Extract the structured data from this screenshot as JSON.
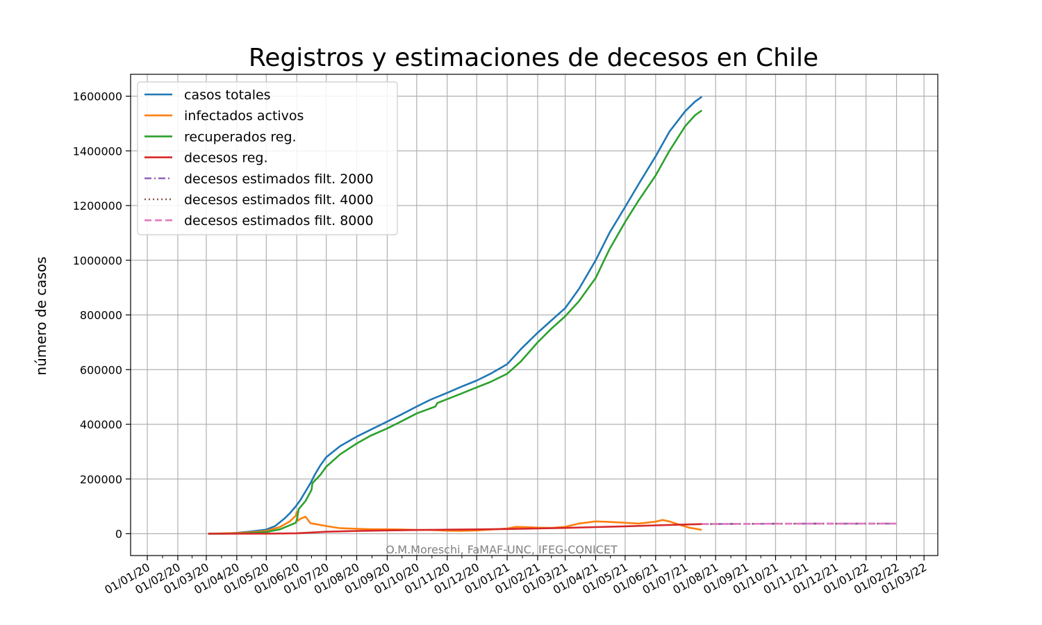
{
  "chart_data": {
    "type": "line",
    "title": "Registros y estimaciones de decesos en Chile",
    "xlabel": "",
    "ylabel": "número de casos",
    "xlim": [
      "2019-12-15",
      "2022-03-15"
    ],
    "ylim": [
      -80000,
      1680000
    ],
    "grid": true,
    "legend_position": "top-left",
    "credit": "O.M.Moreschi, FaMAF-UNC, IFEG-CONICET",
    "x_ticks": [
      {
        "date": "2020-01-01",
        "label": "01/01/20"
      },
      {
        "date": "2020-02-01",
        "label": "01/02/20"
      },
      {
        "date": "2020-03-01",
        "label": "01/03/20"
      },
      {
        "date": "2020-04-01",
        "label": "01/04/20"
      },
      {
        "date": "2020-05-01",
        "label": "01/05/20"
      },
      {
        "date": "2020-06-01",
        "label": "01/06/20"
      },
      {
        "date": "2020-07-01",
        "label": "01/07/20"
      },
      {
        "date": "2020-08-01",
        "label": "01/08/20"
      },
      {
        "date": "2020-09-01",
        "label": "01/09/20"
      },
      {
        "date": "2020-10-01",
        "label": "01/10/20"
      },
      {
        "date": "2020-11-01",
        "label": "01/11/20"
      },
      {
        "date": "2020-12-01",
        "label": "01/12/20"
      },
      {
        "date": "2021-01-01",
        "label": "01/01/21"
      },
      {
        "date": "2021-02-01",
        "label": "01/02/21"
      },
      {
        "date": "2021-03-01",
        "label": "01/03/21"
      },
      {
        "date": "2021-04-01",
        "label": "01/04/21"
      },
      {
        "date": "2021-05-01",
        "label": "01/05/21"
      },
      {
        "date": "2021-06-01",
        "label": "01/06/21"
      },
      {
        "date": "2021-07-01",
        "label": "01/07/21"
      },
      {
        "date": "2021-08-01",
        "label": "01/08/21"
      },
      {
        "date": "2021-09-01",
        "label": "01/09/21"
      },
      {
        "date": "2021-10-01",
        "label": "01/10/21"
      },
      {
        "date": "2021-11-01",
        "label": "01/11/21"
      },
      {
        "date": "2021-12-01",
        "label": "01/12/21"
      },
      {
        "date": "2022-01-01",
        "label": "01/01/22"
      },
      {
        "date": "2022-02-01",
        "label": "01/02/22"
      },
      {
        "date": "2022-03-01",
        "label": "01/03/22"
      }
    ],
    "y_ticks": [
      0,
      200000,
      400000,
      600000,
      800000,
      1000000,
      1200000,
      1400000,
      1600000
    ],
    "series": [
      {
        "name": "casos totales",
        "color": "#1f77b4",
        "style": "solid",
        "points": [
          [
            "2020-03-03",
            0
          ],
          [
            "2020-03-20",
            400
          ],
          [
            "2020-04-01",
            3000
          ],
          [
            "2020-04-15",
            8000
          ],
          [
            "2020-05-01",
            15000
          ],
          [
            "2020-05-10",
            28000
          ],
          [
            "2020-05-20",
            57000
          ],
          [
            "2020-05-25",
            75000
          ],
          [
            "2020-05-31",
            100000
          ],
          [
            "2020-06-05",
            125000
          ],
          [
            "2020-06-10",
            155000
          ],
          [
            "2020-06-15",
            185000
          ],
          [
            "2020-06-20",
            220000
          ],
          [
            "2020-06-25",
            250000
          ],
          [
            "2020-07-01",
            280000
          ],
          [
            "2020-07-15",
            320000
          ],
          [
            "2020-08-01",
            355000
          ],
          [
            "2020-08-15",
            380000
          ],
          [
            "2020-09-01",
            410000
          ],
          [
            "2020-09-15",
            435000
          ],
          [
            "2020-10-01",
            465000
          ],
          [
            "2020-10-15",
            490000
          ],
          [
            "2020-11-01",
            515000
          ],
          [
            "2020-11-15",
            537000
          ],
          [
            "2020-12-01",
            560000
          ],
          [
            "2020-12-15",
            585000
          ],
          [
            "2021-01-01",
            620000
          ],
          [
            "2021-01-15",
            675000
          ],
          [
            "2021-02-01",
            735000
          ],
          [
            "2021-02-15",
            780000
          ],
          [
            "2021-03-01",
            825000
          ],
          [
            "2021-03-15",
            895000
          ],
          [
            "2021-04-01",
            1000000
          ],
          [
            "2021-04-15",
            1100000
          ],
          [
            "2021-05-01",
            1195000
          ],
          [
            "2021-05-15",
            1280000
          ],
          [
            "2021-06-01",
            1380000
          ],
          [
            "2021-06-15",
            1470000
          ],
          [
            "2021-07-01",
            1545000
          ],
          [
            "2021-07-11",
            1580000
          ],
          [
            "2021-07-18",
            1598000
          ]
        ]
      },
      {
        "name": "infectados activos",
        "color": "#ff7f0e",
        "style": "solid",
        "points": [
          [
            "2020-03-03",
            0
          ],
          [
            "2020-04-01",
            2500
          ],
          [
            "2020-04-15",
            5000
          ],
          [
            "2020-05-01",
            10000
          ],
          [
            "2020-05-15",
            25000
          ],
          [
            "2020-05-25",
            45000
          ],
          [
            "2020-05-31",
            66000
          ],
          [
            "2020-06-01",
            80000
          ],
          [
            "2020-06-02",
            47000
          ],
          [
            "2020-06-05",
            55000
          ],
          [
            "2020-06-10",
            62000
          ],
          [
            "2020-06-12",
            52000
          ],
          [
            "2020-06-15",
            38000
          ],
          [
            "2020-06-20",
            35000
          ],
          [
            "2020-07-01",
            28000
          ],
          [
            "2020-07-15",
            20000
          ],
          [
            "2020-08-01",
            18000
          ],
          [
            "2020-08-15",
            16500
          ],
          [
            "2020-09-01",
            16000
          ],
          [
            "2020-09-15",
            15500
          ],
          [
            "2020-10-01",
            14000
          ],
          [
            "2020-10-15",
            13500
          ],
          [
            "2020-11-01",
            11000
          ],
          [
            "2020-11-15",
            10500
          ],
          [
            "2020-12-01",
            12000
          ],
          [
            "2020-12-15",
            15000
          ],
          [
            "2021-01-01",
            19000
          ],
          [
            "2021-01-10",
            25000
          ],
          [
            "2021-01-20",
            24000
          ],
          [
            "2021-02-01",
            22000
          ],
          [
            "2021-02-15",
            21000
          ],
          [
            "2021-03-01",
            25000
          ],
          [
            "2021-03-15",
            37000
          ],
          [
            "2021-04-01",
            45000
          ],
          [
            "2021-04-15",
            43000
          ],
          [
            "2021-05-01",
            40000
          ],
          [
            "2021-05-15",
            37000
          ],
          [
            "2021-06-01",
            44000
          ],
          [
            "2021-06-08",
            50000
          ],
          [
            "2021-06-15",
            45000
          ],
          [
            "2021-06-25",
            33000
          ],
          [
            "2021-07-05",
            22000
          ],
          [
            "2021-07-18",
            14000
          ]
        ]
      },
      {
        "name": "recuperados reg.",
        "color": "#2ca02c",
        "style": "solid",
        "points": [
          [
            "2020-03-03",
            0
          ],
          [
            "2020-04-01",
            500
          ],
          [
            "2020-04-15",
            2500
          ],
          [
            "2020-05-01",
            6000
          ],
          [
            "2020-05-15",
            16000
          ],
          [
            "2020-05-31",
            40000
          ],
          [
            "2020-06-01",
            50000
          ],
          [
            "2020-06-03",
            90000
          ],
          [
            "2020-06-10",
            120000
          ],
          [
            "2020-06-16",
            160000
          ],
          [
            "2020-06-17",
            185000
          ],
          [
            "2020-06-25",
            215000
          ],
          [
            "2020-07-01",
            245000
          ],
          [
            "2020-07-15",
            290000
          ],
          [
            "2020-08-01",
            330000
          ],
          [
            "2020-08-15",
            358000
          ],
          [
            "2020-09-01",
            385000
          ],
          [
            "2020-09-15",
            410000
          ],
          [
            "2020-10-01",
            440000
          ],
          [
            "2020-10-20",
            465000
          ],
          [
            "2020-10-22",
            478000
          ],
          [
            "2020-11-01",
            492000
          ],
          [
            "2020-11-15",
            512000
          ],
          [
            "2020-12-01",
            535000
          ],
          [
            "2020-12-15",
            555000
          ],
          [
            "2021-01-01",
            585000
          ],
          [
            "2021-01-15",
            630000
          ],
          [
            "2021-02-01",
            700000
          ],
          [
            "2021-02-15",
            750000
          ],
          [
            "2021-03-01",
            795000
          ],
          [
            "2021-03-15",
            850000
          ],
          [
            "2021-04-01",
            935000
          ],
          [
            "2021-04-15",
            1040000
          ],
          [
            "2021-05-01",
            1140000
          ],
          [
            "2021-05-15",
            1220000
          ],
          [
            "2021-06-01",
            1310000
          ],
          [
            "2021-06-15",
            1400000
          ],
          [
            "2021-07-01",
            1490000
          ],
          [
            "2021-07-11",
            1530000
          ],
          [
            "2021-07-18",
            1548000
          ]
        ]
      },
      {
        "name": "decesos reg.",
        "color": "#d62728",
        "style": "solid",
        "points": [
          [
            "2020-03-03",
            0
          ],
          [
            "2020-05-01",
            300
          ],
          [
            "2020-06-01",
            1500
          ],
          [
            "2020-07-01",
            7000
          ],
          [
            "2020-08-01",
            10000
          ],
          [
            "2020-09-01",
            12000
          ],
          [
            "2020-10-01",
            13500
          ],
          [
            "2020-11-01",
            14800
          ],
          [
            "2020-12-01",
            15800
          ],
          [
            "2021-01-01",
            17000
          ],
          [
            "2021-02-01",
            19000
          ],
          [
            "2021-03-01",
            21000
          ],
          [
            "2021-04-01",
            24000
          ],
          [
            "2021-05-01",
            27000
          ],
          [
            "2021-06-01",
            30500
          ],
          [
            "2021-07-01",
            33500
          ],
          [
            "2021-07-18",
            35000
          ]
        ]
      },
      {
        "name": "decesos estimados filt. 2000",
        "color": "#9467bd",
        "style": "dashdot",
        "points": [
          [
            "2021-07-18",
            35000
          ],
          [
            "2021-09-01",
            36000
          ],
          [
            "2021-11-01",
            36500
          ],
          [
            "2022-01-01",
            36800
          ],
          [
            "2022-02-01",
            36900
          ]
        ]
      },
      {
        "name": "decesos estimados filt. 4000",
        "color": "#8c564b",
        "style": "dotted",
        "points": [
          [
            "2021-07-18",
            35000
          ],
          [
            "2021-09-01",
            36000
          ],
          [
            "2021-11-01",
            36500
          ],
          [
            "2022-01-01",
            36800
          ],
          [
            "2022-02-01",
            36900
          ]
        ]
      },
      {
        "name": "decesos estimados filt. 8000",
        "color": "#e377c2",
        "style": "dashed",
        "points": [
          [
            "2021-07-18",
            35000
          ],
          [
            "2021-09-01",
            36000
          ],
          [
            "2021-11-01",
            36500
          ],
          [
            "2022-01-01",
            36800
          ],
          [
            "2022-02-01",
            36900
          ]
        ]
      }
    ]
  }
}
